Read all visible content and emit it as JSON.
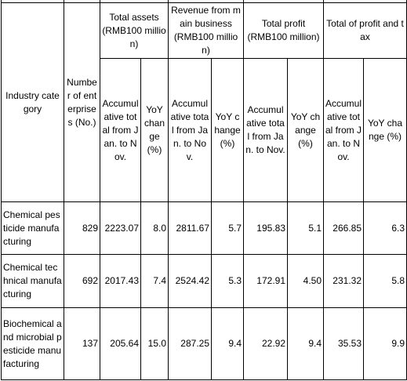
{
  "header": {
    "columns": [
      "Industry category",
      "Number of enterprises (No.)"
    ],
    "groups": [
      {
        "title": "Total assets",
        "unit": "(RMB100 million)",
        "columns": [
          "Accumulative total from Jan. to Nov.",
          "YoY change (%)"
        ]
      },
      {
        "title": "Revenue from main business",
        "unit": "(RMB100 million)",
        "columns": [
          "Accumulative total from Jan. to Nov.",
          "YoY change (%)"
        ]
      },
      {
        "title": "Total profit",
        "unit": "(RMB100 million)",
        "columns": [
          "Accumulative total from Jan. to Nov.",
          "YoY change (%)"
        ]
      },
      {
        "title": "Total of profit and tax",
        "columns": [
          "Accumulative total from Jan. to Nov.",
          "YoY change (%)"
        ]
      }
    ]
  },
  "table": {
    "rows": [
      [
        "Chemical pesticide manufacturing",
        "829",
        "2223.07",
        "8.0",
        "2811.67",
        "5.7",
        "195.83",
        "5.1",
        "266.85",
        "6.3"
      ],
      [
        "Chemical technical manufacturing",
        "692",
        "2017.43",
        "7.4",
        "2524.42",
        "5.3",
        "172.91",
        "4.50",
        "231.32",
        "5.8"
      ],
      [
        "Biochemical and microbial pesticide manufacturing",
        "137",
        "205.64",
        "15.0",
        "287.25",
        "9.4",
        "22.92",
        "9.4",
        "35.53",
        "9.9"
      ]
    ]
  }
}
